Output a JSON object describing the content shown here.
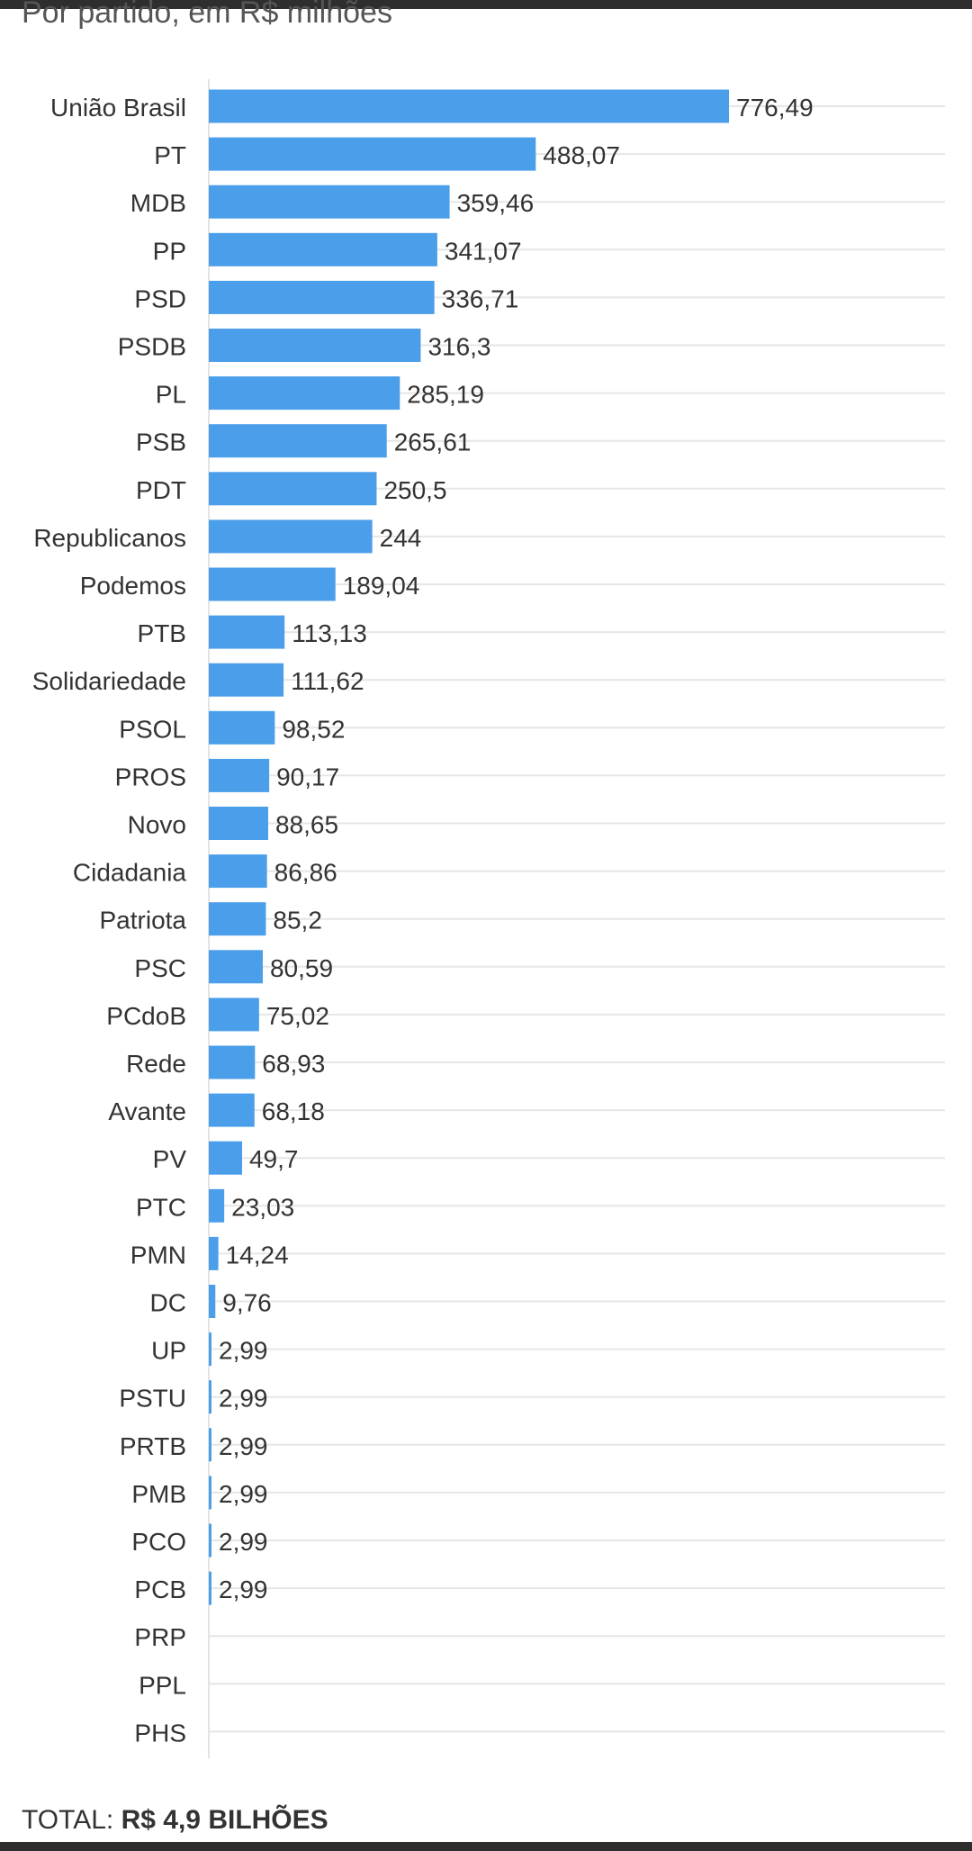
{
  "header": {
    "subtitle": "Por partido, em R$ milhões"
  },
  "footer": {
    "total_label": "TOTAL:",
    "total_value": "R$ 4,9 BILHÕES"
  },
  "colors": {
    "bar": "#4a9eea",
    "grid": "#e6e6e6",
    "label": "#333333"
  },
  "chart_data": {
    "type": "bar",
    "orientation": "horizontal",
    "categories": [
      "União Brasil",
      "PT",
      "MDB",
      "PP",
      "PSD",
      "PSDB",
      "PL",
      "PSB",
      "PDT",
      "Republicanos",
      "Podemos",
      "PTB",
      "Solidariedade",
      "PSOL",
      "PROS",
      "Novo",
      "Cidadania",
      "Patriota",
      "PSC",
      "PCdoB",
      "Rede",
      "Avante",
      "PV",
      "PTC",
      "PMN",
      "DC",
      "UP",
      "PSTU",
      "PRTB",
      "PMB",
      "PCO",
      "PCB",
      "PRP",
      "PPL",
      "PHS"
    ],
    "values": [
      776.49,
      488.07,
      359.46,
      341.07,
      336.71,
      316.3,
      285.19,
      265.61,
      250.5,
      244,
      189.04,
      113.13,
      111.62,
      98.52,
      90.17,
      88.65,
      86.86,
      85.2,
      80.59,
      75.02,
      68.93,
      68.18,
      49.7,
      23.03,
      14.24,
      9.76,
      2.99,
      2.99,
      2.99,
      2.99,
      2.99,
      2.99,
      null,
      null,
      null
    ],
    "value_labels": [
      "776,49",
      "488,07",
      "359,46",
      "341,07",
      "336,71",
      "316,3",
      "285,19",
      "265,61",
      "250,5",
      "244",
      "189,04",
      "113,13",
      "111,62",
      "98,52",
      "90,17",
      "88,65",
      "86,86",
      "85,2",
      "80,59",
      "75,02",
      "68,93",
      "68,18",
      "49,7",
      "23,03",
      "14,24",
      "9,76",
      "2,99",
      "2,99",
      "2,99",
      "2,99",
      "2,99",
      "2,99",
      "",
      "",
      ""
    ],
    "xlim": [
      0,
      1000
    ],
    "grid": true,
    "title": "",
    "xlabel": "",
    "ylabel": ""
  }
}
